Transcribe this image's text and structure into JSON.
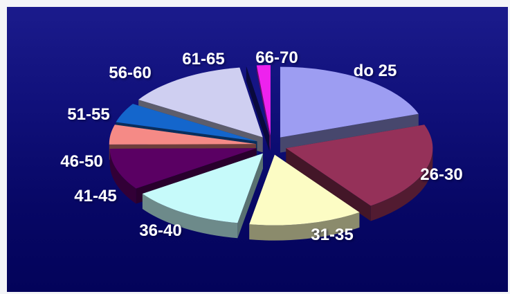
{
  "chart_data": {
    "type": "pie",
    "title": "",
    "style": "3d-exploded",
    "categories": [
      "do 25",
      "26-30",
      "31-35",
      "36-40",
      "41-45",
      "46-50",
      "51-55",
      "56-60",
      "61-65",
      "66-70"
    ],
    "values": [
      19.5,
      20.5,
      12.5,
      12.5,
      9.5,
      4.5,
      4.5,
      13.5,
      1.0,
      1.5
    ],
    "colors": [
      "#9d9df2",
      "#953159",
      "#fcfcc4",
      "#c6fafa",
      "#5a0063",
      "#f58a86",
      "#1466cc",
      "#cfcff1",
      "#151585",
      "#ee22ee"
    ],
    "legend": "none",
    "data_labels": "category-name"
  }
}
